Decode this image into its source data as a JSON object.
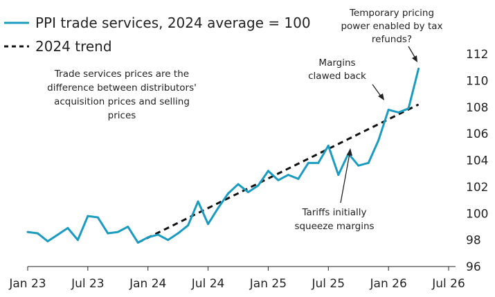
{
  "colors": {
    "series": "#1a9bbf",
    "trend": "#111111",
    "text": "#222222",
    "axis": "#222222"
  },
  "chart_data": {
    "type": "line",
    "x_ticks": [
      "Jan 23",
      "Jul 23",
      "Jan 24",
      "Jul 24",
      "Jan 25",
      "Jul 25",
      "Jan 26",
      "Jul 26"
    ],
    "y_ticks": [
      "96",
      "98",
      "100",
      "102",
      "104",
      "106",
      "108",
      "110",
      "112"
    ],
    "xlim": [
      "2023-01",
      "2026-07"
    ],
    "ylim": [
      96,
      112
    ],
    "y_axis_side": "right",
    "grid": false,
    "legend_position": "top-left",
    "series": [
      {
        "name": "PPI trade services, 2024 average = 100",
        "style": "solid",
        "x": [
          "2023-01",
          "2023-02",
          "2023-03",
          "2023-04",
          "2023-05",
          "2023-06",
          "2023-07",
          "2023-08",
          "2023-09",
          "2023-10",
          "2023-11",
          "2023-12",
          "2024-01",
          "2024-02",
          "2024-03",
          "2024-04",
          "2024-05",
          "2024-06",
          "2024-07",
          "2024-08",
          "2024-09",
          "2024-10",
          "2024-11",
          "2024-12",
          "2025-01",
          "2025-02",
          "2025-03",
          "2025-04",
          "2025-05",
          "2025-06",
          "2025-07",
          "2025-08",
          "2025-09",
          "2025-10",
          "2025-11",
          "2025-12",
          "2026-01",
          "2026-02",
          "2026-03",
          "2026-04"
        ],
        "values": [
          98.6,
          98.5,
          97.9,
          98.4,
          98.9,
          98.0,
          99.8,
          99.7,
          98.5,
          98.6,
          99.0,
          97.8,
          98.2,
          98.4,
          98.0,
          98.5,
          99.1,
          100.9,
          99.2,
          100.4,
          101.5,
          102.2,
          101.6,
          102.1,
          103.2,
          102.5,
          102.9,
          102.6,
          103.8,
          103.8,
          105.1,
          102.9,
          104.5,
          103.6,
          103.8,
          105.5,
          107.8,
          107.6,
          107.9,
          110.9
        ]
      },
      {
        "name": "2024 trend",
        "style": "dashed",
        "x": [
          "2023-12",
          "2026-04"
        ],
        "values": [
          97.8,
          108.2
        ]
      }
    ],
    "annotations": [
      {
        "lines": [
          "Temporary pricing",
          "power enabled by tax",
          "refunds?"
        ]
      },
      {
        "lines": [
          "Margins",
          "clawed back"
        ]
      },
      {
        "lines": [
          "Trade services prices are the",
          "difference between distributors'",
          "acquisition prices and selling",
          "prices"
        ]
      },
      {
        "lines": [
          "Tariffs initially",
          "squeeze margins"
        ]
      }
    ]
  }
}
